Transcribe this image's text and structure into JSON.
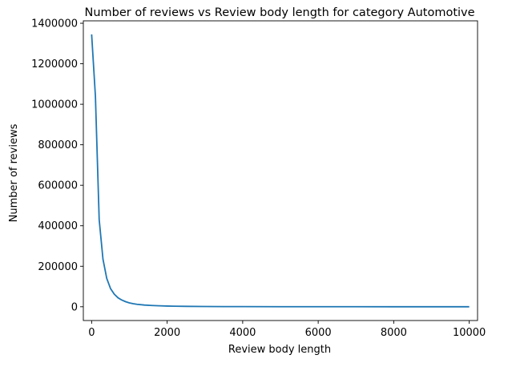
{
  "chart_data": {
    "type": "line",
    "title": "Number of reviews vs Review body length for category Automotive",
    "xlabel": "Review body length",
    "ylabel": "Number of reviews",
    "xlim": [
      -220,
      10220
    ],
    "ylim": [
      -68000,
      1412000
    ],
    "xticks": [
      0,
      2000,
      4000,
      6000,
      8000,
      10000
    ],
    "xtick_labels": [
      "0",
      "2000",
      "4000",
      "6000",
      "8000",
      "10000"
    ],
    "yticks": [
      0,
      200000,
      400000,
      600000,
      800000,
      1000000,
      1200000,
      1400000
    ],
    "ytick_labels": [
      "0",
      "200000",
      "400000",
      "600000",
      "800000",
      "1000000",
      "1200000",
      "1400000"
    ],
    "grid": false,
    "legend": false,
    "line_color": "#1f77b4",
    "series": [
      {
        "x": [
          0,
          100,
          200,
          300,
          400,
          500,
          600,
          700,
          800,
          900,
          1000,
          1100,
          1200,
          1400,
          1600,
          1800,
          2000,
          2200,
          2500,
          3000,
          3500,
          4000,
          5000,
          6000,
          7000,
          8000,
          9000,
          10000
        ],
        "values": [
          1345000,
          1040000,
          430000,
          235000,
          140000,
          90000,
          62000,
          44000,
          33000,
          25000,
          19000,
          15000,
          12000,
          8500,
          6200,
          4600,
          3500,
          2800,
          2000,
          1300,
          900,
          650,
          380,
          250,
          170,
          120,
          90,
          70
        ]
      }
    ]
  }
}
